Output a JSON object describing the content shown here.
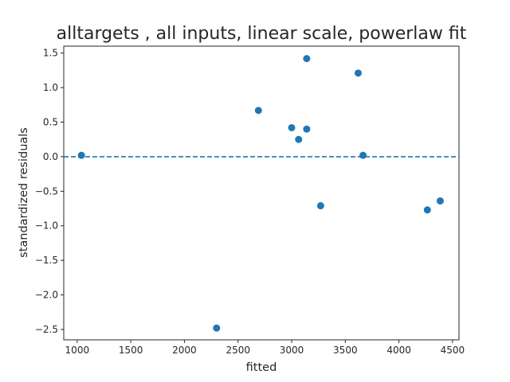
{
  "chart_data": {
    "type": "scatter",
    "title": "alltargets , all inputs, linear scale, powerlaw fit",
    "xlabel": "fitted",
    "ylabel": "standardized residuals",
    "xlim": [
      875,
      4560
    ],
    "ylim": [
      -2.65,
      1.6
    ],
    "xticks": [
      1000,
      1500,
      2000,
      2500,
      3000,
      3500,
      4000,
      4500
    ],
    "xtick_labels": [
      "1000",
      "1500",
      "2000",
      "2500",
      "3000",
      "3500",
      "4000",
      "4500"
    ],
    "yticks": [
      1.5,
      1.0,
      0.5,
      0.0,
      -0.5,
      -1.0,
      -1.5,
      -2.0,
      -2.5
    ],
    "ytick_labels": [
      "1.5",
      "1.0",
      "0.5",
      "0.0",
      "−0.5",
      "−1.0",
      "−1.5",
      "−2.0",
      "−2.5"
    ],
    "reference_line": {
      "y": 0.0,
      "style": "dashed"
    },
    "points": [
      {
        "x": 1040,
        "y": 0.02
      },
      {
        "x": 2300,
        "y": -2.48
      },
      {
        "x": 2690,
        "y": 0.67
      },
      {
        "x": 3000,
        "y": 0.42
      },
      {
        "x": 3065,
        "y": 0.25
      },
      {
        "x": 3140,
        "y": 1.42
      },
      {
        "x": 3140,
        "y": 0.4
      },
      {
        "x": 3270,
        "y": -0.71
      },
      {
        "x": 3620,
        "y": 1.21
      },
      {
        "x": 3665,
        "y": 0.02
      },
      {
        "x": 4265,
        "y": -0.77
      },
      {
        "x": 4385,
        "y": -0.64
      }
    ],
    "grid": false,
    "colors": {
      "marker": "#1f77b4",
      "reference_line": "#1f77b4",
      "axes": "#262626"
    }
  }
}
